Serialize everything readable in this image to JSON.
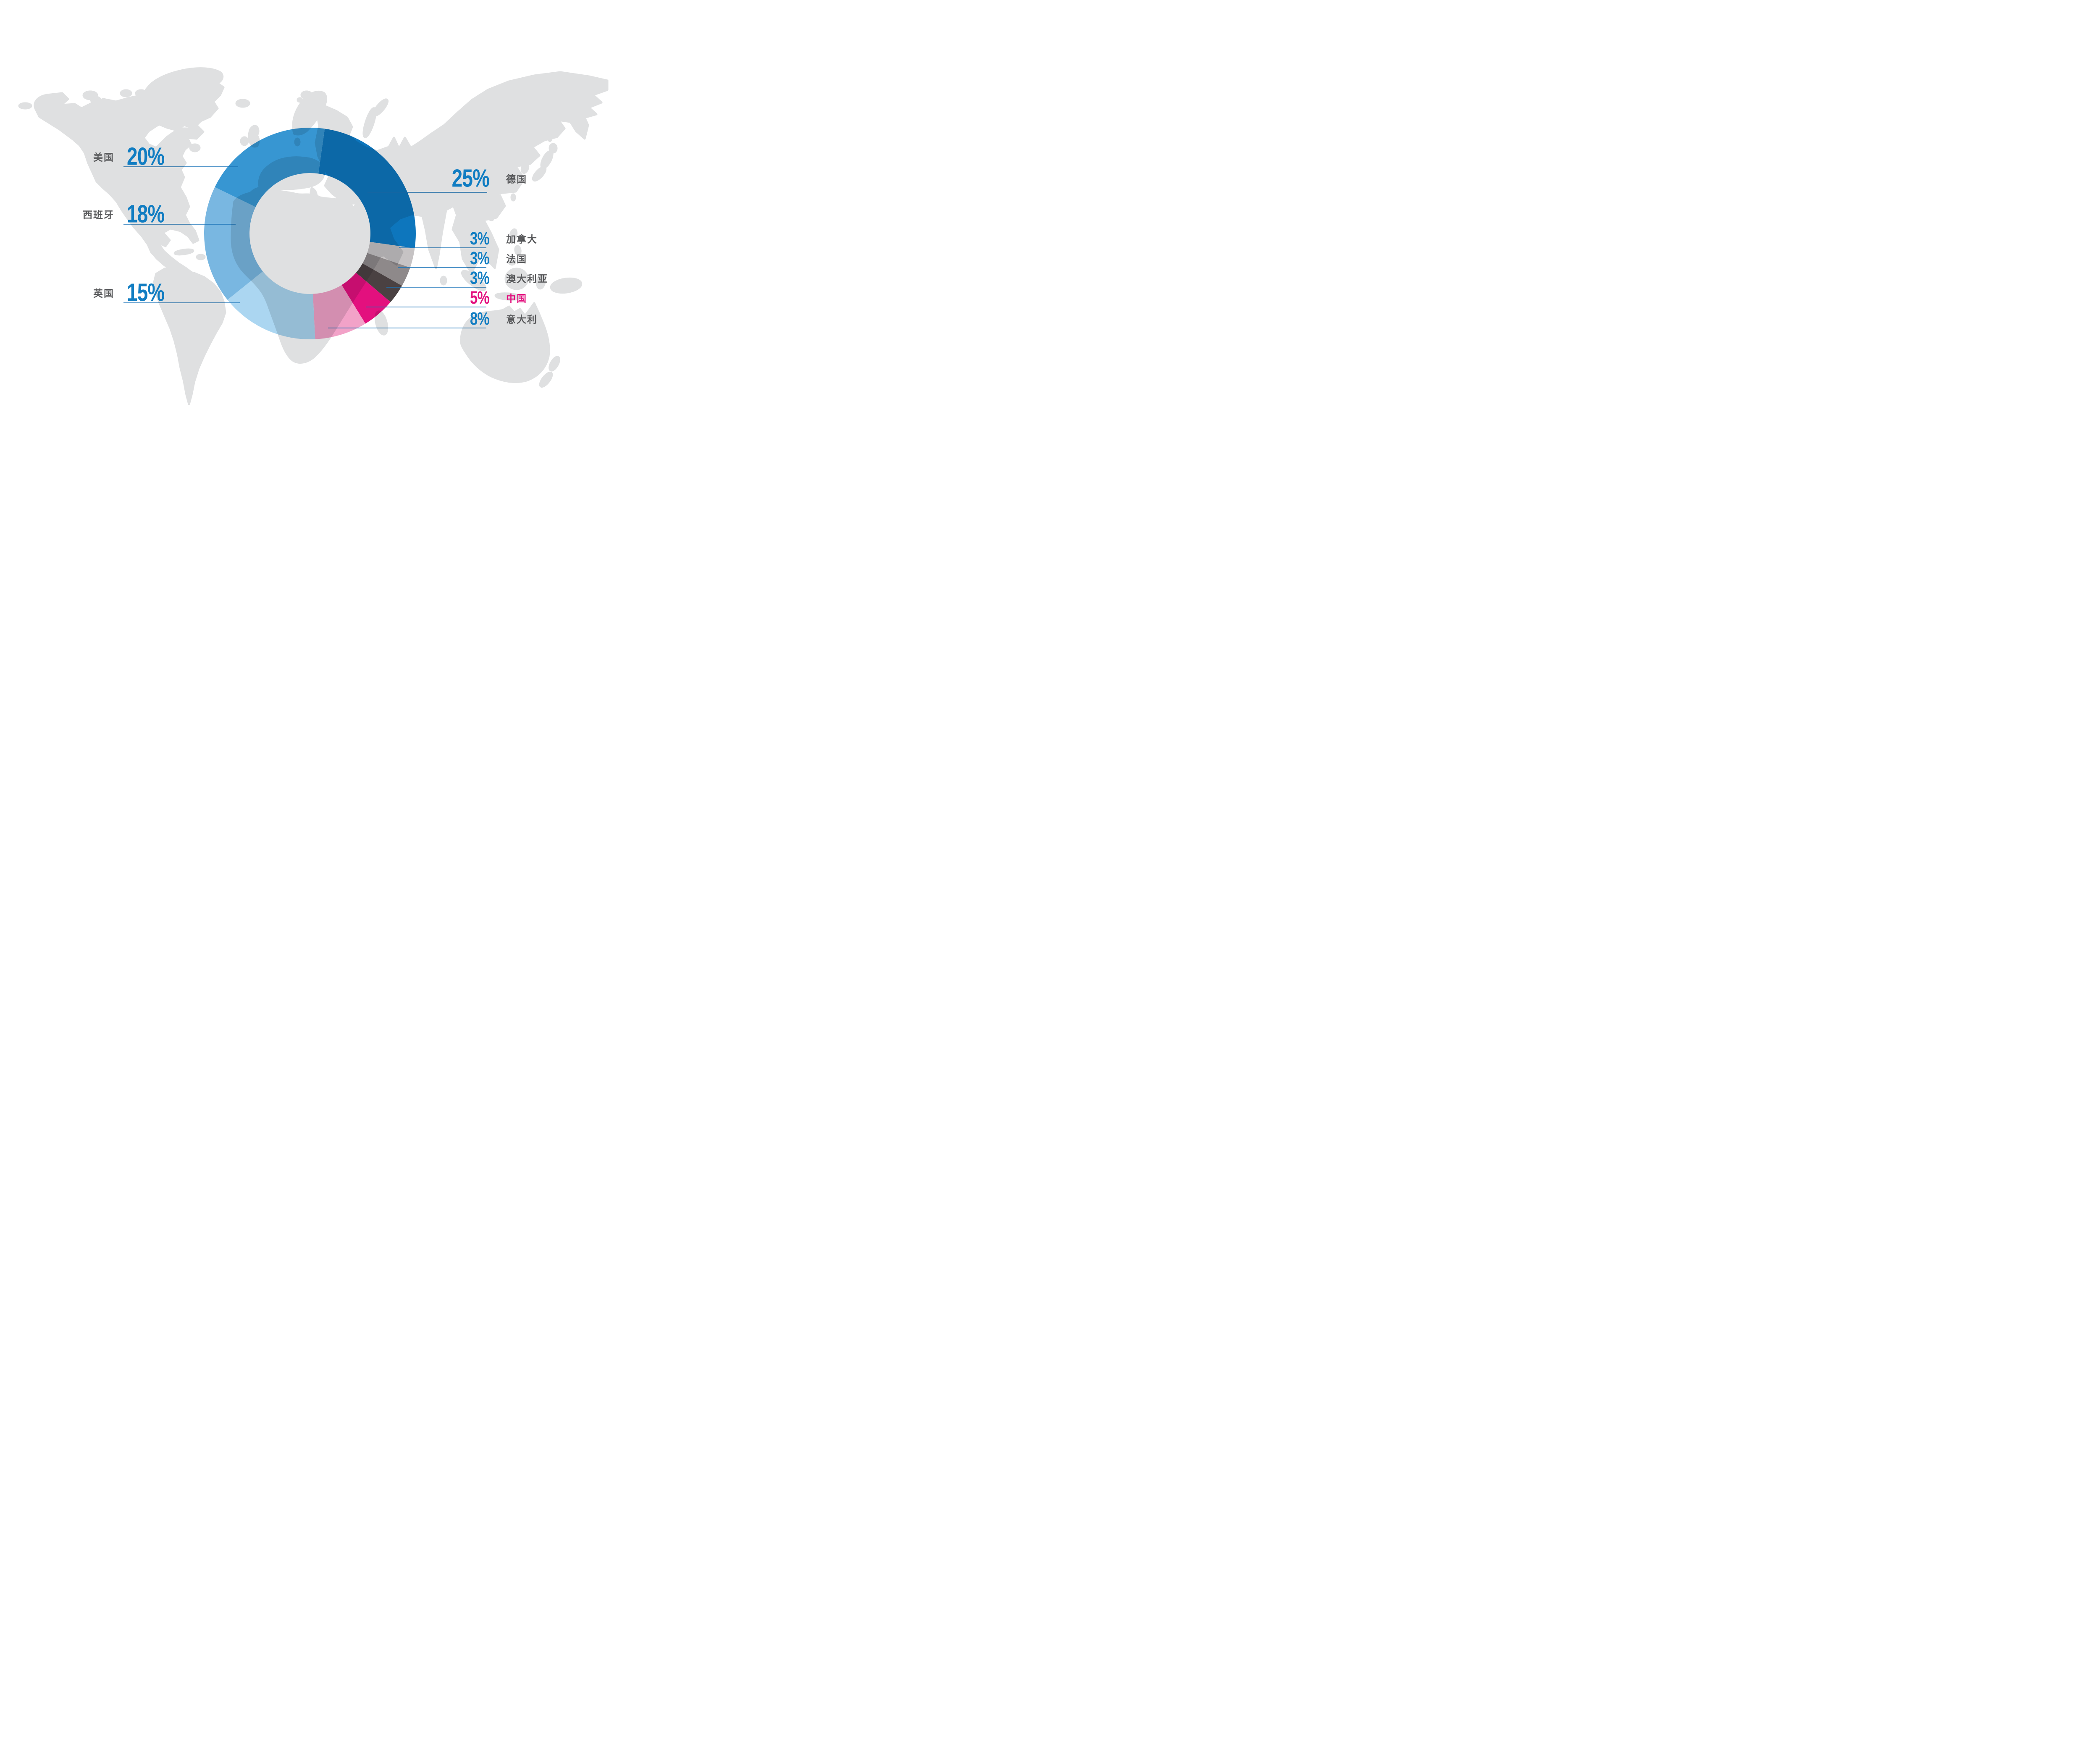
{
  "styles": {
    "background": "#ffffff",
    "map_land": "#dfe0e1",
    "percent_blue": "#117dc2",
    "label_gray": "#58595b",
    "highlight_pink": "#e3107e",
    "leader_line": "#1a74b8"
  },
  "chart_data": {
    "type": "donut",
    "title": "",
    "unit": "%",
    "start_angle_deg": 8,
    "clockwise": true,
    "inner_radius_ratio": 0.57,
    "legend_position": "callouts-both-sides",
    "background": "world-map",
    "categories": [
      "德国",
      "加拿大",
      "法国",
      "澳大利亚",
      "中国",
      "意大利",
      "英国",
      "西班牙",
      "美国"
    ],
    "values": [
      25,
      3,
      3,
      3,
      5,
      8,
      15,
      18,
      20
    ],
    "segments": [
      {
        "label": "德国",
        "value": 25,
        "color": "#0d76bd",
        "emphasis": false
      },
      {
        "label": "加拿大",
        "value": 3,
        "color": "#c6c3c4",
        "emphasis": false
      },
      {
        "label": "法国",
        "value": 3,
        "color": "#8e898a",
        "emphasis": false
      },
      {
        "label": "澳大利亚",
        "value": 3,
        "color": "#4a4142",
        "emphasis": false
      },
      {
        "label": "中国",
        "value": 5,
        "color": "#e3107e",
        "emphasis": true
      },
      {
        "label": "意大利",
        "value": 8,
        "color": "#f2a2c8",
        "emphasis": false
      },
      {
        "label": "英国",
        "value": 15,
        "color": "#abd6f1",
        "emphasis": false
      },
      {
        "label": "西班牙",
        "value": 18,
        "color": "#79b7e1",
        "emphasis": false
      },
      {
        "label": "美国",
        "value": 20,
        "color": "#3796d2",
        "emphasis": false
      }
    ]
  }
}
